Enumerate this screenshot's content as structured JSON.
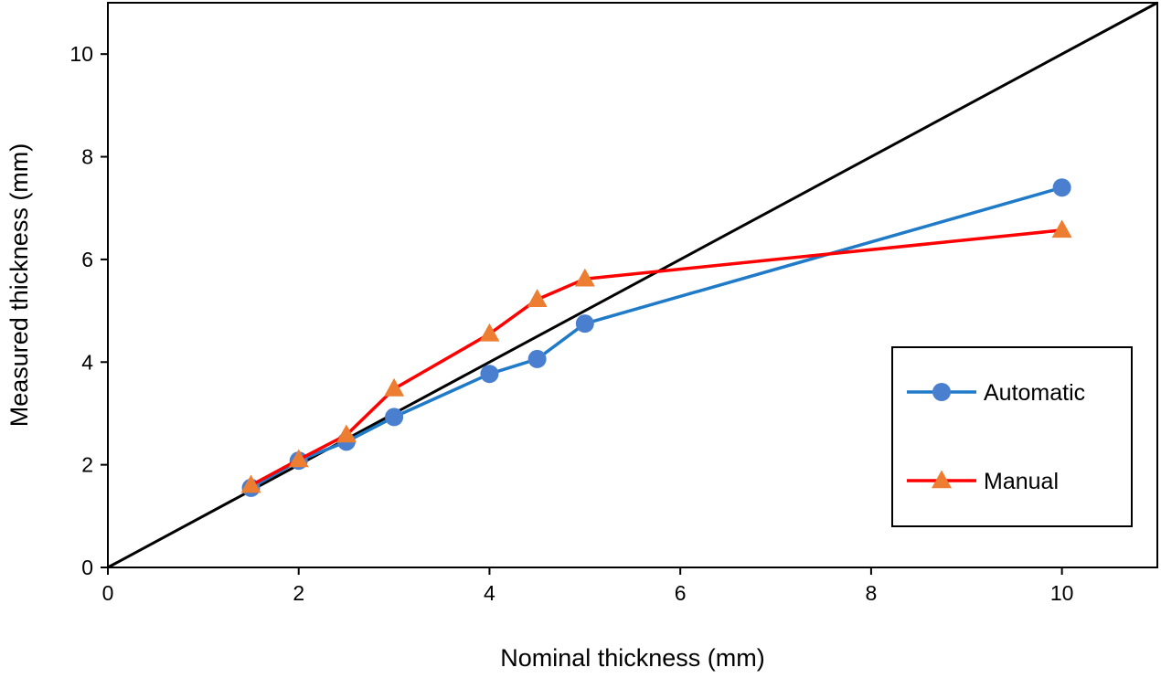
{
  "chart_data": {
    "type": "line",
    "title": "",
    "xlabel": "Nominal thickness (mm)",
    "ylabel": "Measured thickness (mm)",
    "xlim": [
      0,
      11
    ],
    "ylim": [
      0,
      11
    ],
    "xticks": [
      0,
      2,
      4,
      6,
      8,
      10
    ],
    "yticks": [
      0,
      2,
      4,
      6,
      8,
      10
    ],
    "x_tick_labels": [
      "0",
      "2",
      "4",
      "6",
      "8",
      "10"
    ],
    "y_tick_labels": [
      "0",
      "2",
      "4",
      "6",
      "8",
      "10"
    ],
    "grid": false,
    "legend_position": "right",
    "reference_line": {
      "x": [
        0,
        11
      ],
      "y": [
        0,
        11
      ],
      "color": "#000000"
    },
    "series": [
      {
        "name": "Automatic",
        "color": "#1f7ac8",
        "marker_color": "#4a7fd0",
        "marker": "circle",
        "x": [
          1.5,
          2,
          2.5,
          3,
          4,
          4.5,
          5,
          10
        ],
        "y": [
          1.55,
          2.08,
          2.45,
          2.93,
          3.77,
          4.06,
          4.75,
          7.4
        ]
      },
      {
        "name": "Manual",
        "color": "#ff0000",
        "marker_color": "#ed7d31",
        "marker": "triangle",
        "x": [
          1.5,
          2,
          2.5,
          3,
          4,
          4.5,
          5,
          10
        ],
        "y": [
          1.6,
          2.1,
          2.58,
          3.48,
          4.55,
          5.22,
          5.62,
          6.57
        ]
      }
    ]
  }
}
